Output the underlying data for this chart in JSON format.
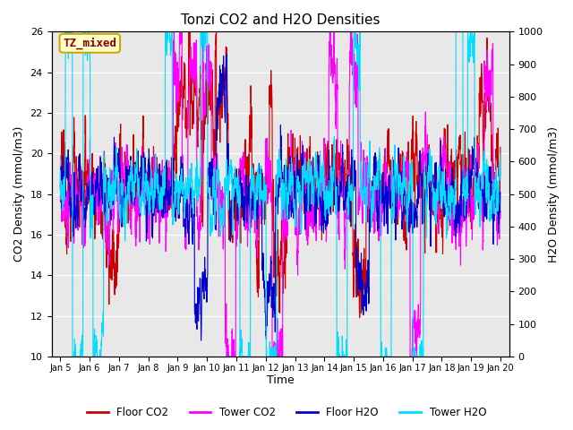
{
  "title": "Tonzi CO2 and H2O Densities",
  "xlabel": "Time",
  "ylabel_left": "CO2 Density (mmol/m3)",
  "ylabel_right": "H2O Density (mmol/m3)",
  "annotation_text": "TZ_mixed",
  "annotation_color": "#8b0000",
  "annotation_bg": "#ffffcc",
  "annotation_border": "#ccaa00",
  "xlim_days": [
    4.7,
    20.3
  ],
  "ylim_left": [
    10,
    26
  ],
  "ylim_right": [
    0,
    1000
  ],
  "xtick_labels": [
    "Jan 5",
    "Jan 6",
    "Jan 7",
    "Jan 8",
    "Jan 9",
    "Jan 10",
    "Jan 11",
    "Jan 12",
    "Jan 13",
    "Jan 14",
    "Jan 15",
    "Jan 16",
    "Jan 17",
    "Jan 18",
    "Jan 19",
    "Jan 20"
  ],
  "xtick_positions": [
    5,
    6,
    7,
    8,
    9,
    10,
    11,
    12,
    13,
    14,
    15,
    16,
    17,
    18,
    19,
    20
  ],
  "yticks_left": [
    10,
    12,
    14,
    16,
    18,
    20,
    22,
    24,
    26
  ],
  "yticks_right": [
    0,
    100,
    200,
    300,
    400,
    500,
    600,
    700,
    800,
    900,
    1000
  ],
  "floor_co2_color": "#cc0000",
  "tower_co2_color": "#ff00ff",
  "floor_h2o_color": "#0000cc",
  "tower_h2o_color": "#00ddff",
  "line_width": 0.8,
  "bg_color": "#e8e8e8",
  "legend_labels": [
    "Floor CO2",
    "Tower CO2",
    "Floor H2O",
    "Tower H2O"
  ],
  "seed": 12345,
  "n_points": 3000,
  "figwidth": 6.4,
  "figheight": 4.8,
  "dpi": 100
}
